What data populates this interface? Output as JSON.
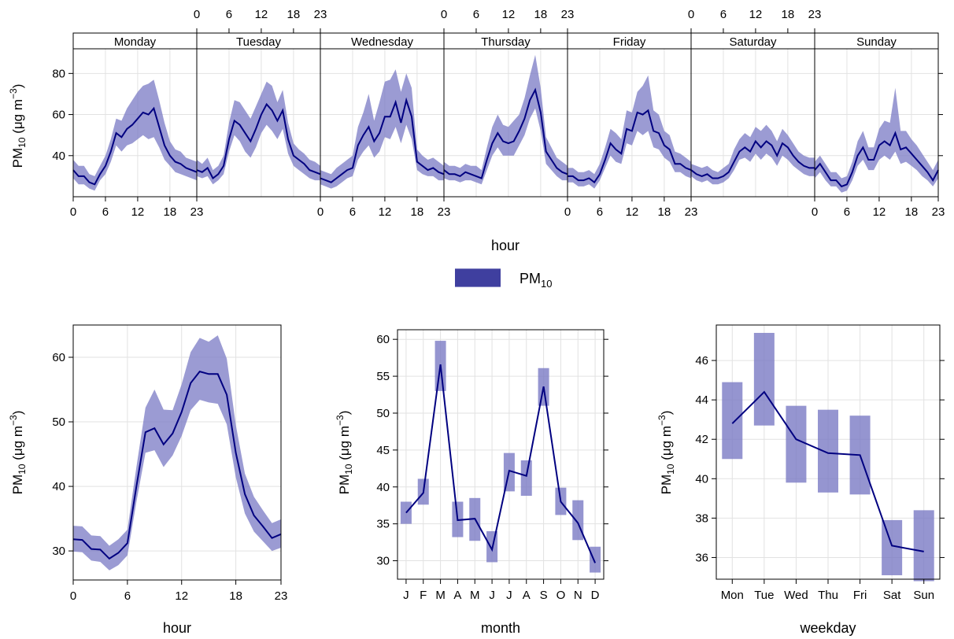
{
  "colors": {
    "line": "#000080",
    "band": "#7a7ac4",
    "grid": "#e2e2e2",
    "strip_bg": "#ffffff"
  },
  "legend": {
    "label": "PM",
    "label_sub": "10"
  },
  "ylabel": {
    "prefix": "PM",
    "sub": "10",
    "unit_open": " (μg m",
    "sup": "−3",
    "unit_close": ")"
  },
  "chart_data": [
    {
      "type": "area",
      "id": "hour_by_weekday",
      "xlabel": "hour",
      "ylim": [
        20,
        92
      ],
      "yticks": [
        40,
        60,
        80
      ],
      "xticks": [
        0,
        6,
        12,
        18,
        23
      ],
      "panels": [
        {
          "label": "Monday",
          "mean": [
            33,
            30,
            30,
            27,
            26,
            31,
            35,
            42,
            51,
            49,
            53,
            55,
            58,
            61,
            60,
            63,
            54,
            45,
            40,
            37,
            36,
            34,
            33,
            32
          ],
          "lower": [
            29,
            26,
            26,
            24,
            23,
            28,
            31,
            37,
            45,
            42,
            45,
            46,
            48,
            50,
            48,
            49,
            44,
            38,
            35,
            32,
            31,
            30,
            29,
            28
          ],
          "upper": [
            38,
            35,
            35,
            31,
            30,
            35,
            40,
            48,
            58,
            57,
            63,
            67,
            71,
            74,
            75,
            77,
            67,
            56,
            47,
            43,
            42,
            39,
            38,
            37
          ]
        },
        {
          "label": "Tuesday",
          "mean": [
            33,
            32,
            34,
            29,
            31,
            35,
            48,
            57,
            55,
            51,
            47,
            53,
            60,
            65,
            62,
            57,
            62,
            48,
            40,
            38,
            36,
            33,
            32,
            31
          ],
          "lower": [
            30,
            29,
            30,
            26,
            28,
            31,
            42,
            50,
            47,
            42,
            39,
            44,
            51,
            55,
            52,
            48,
            53,
            41,
            35,
            33,
            31,
            29,
            28,
            28
          ],
          "upper": [
            38,
            36,
            39,
            33,
            35,
            40,
            56,
            67,
            66,
            62,
            58,
            64,
            70,
            76,
            74,
            66,
            72,
            56,
            46,
            43,
            41,
            38,
            37,
            35
          ]
        },
        {
          "label": "Wednesday",
          "mean": [
            29,
            28,
            27,
            29,
            31,
            33,
            34,
            45,
            50,
            54,
            47,
            51,
            59,
            59,
            66,
            56,
            67,
            59,
            37,
            35,
            33,
            34,
            32,
            31
          ],
          "lower": [
            26,
            25,
            24,
            25,
            27,
            29,
            30,
            38,
            42,
            45,
            39,
            42,
            49,
            48,
            54,
            46,
            55,
            48,
            33,
            31,
            30,
            30,
            28,
            28
          ],
          "upper": [
            33,
            32,
            31,
            34,
            36,
            38,
            40,
            54,
            61,
            70,
            57,
            66,
            76,
            77,
            82,
            71,
            80,
            73,
            43,
            40,
            38,
            39,
            37,
            35
          ]
        },
        {
          "label": "Thursday",
          "mean": [
            33,
            31,
            31,
            30,
            32,
            31,
            30,
            29,
            38,
            46,
            51,
            47,
            46,
            47,
            52,
            58,
            67,
            72,
            61,
            42,
            38,
            34,
            32,
            31
          ],
          "lower": [
            29,
            28,
            28,
            27,
            28,
            28,
            27,
            26,
            33,
            40,
            44,
            40,
            40,
            40,
            45,
            50,
            58,
            63,
            52,
            36,
            33,
            30,
            28,
            28
          ],
          "upper": [
            37,
            35,
            35,
            34,
            36,
            35,
            35,
            33,
            44,
            54,
            60,
            55,
            54,
            57,
            60,
            68,
            79,
            89,
            73,
            49,
            44,
            39,
            37,
            35
          ]
        },
        {
          "label": "Friday",
          "mean": [
            30,
            30,
            28,
            28,
            29,
            27,
            31,
            38,
            46,
            43,
            41,
            53,
            52,
            61,
            60,
            62,
            52,
            51,
            45,
            43,
            36,
            36,
            34,
            33
          ],
          "lower": [
            27,
            27,
            25,
            25,
            26,
            24,
            28,
            34,
            40,
            37,
            36,
            46,
            45,
            52,
            50,
            52,
            44,
            43,
            39,
            37,
            32,
            32,
            30,
            29
          ],
          "upper": [
            34,
            34,
            32,
            32,
            33,
            31,
            36,
            44,
            53,
            51,
            48,
            62,
            61,
            71,
            74,
            79,
            62,
            60,
            52,
            50,
            42,
            41,
            39,
            37
          ]
        },
        {
          "label": "Saturday",
          "mean": [
            33,
            31,
            30,
            31,
            29,
            29,
            30,
            32,
            37,
            42,
            44,
            42,
            47,
            44,
            47,
            45,
            40,
            46,
            44,
            40,
            37,
            35,
            34,
            34
          ],
          "lower": [
            30,
            28,
            27,
            28,
            26,
            26,
            27,
            29,
            33,
            38,
            39,
            37,
            41,
            38,
            41,
            39,
            35,
            40,
            38,
            35,
            33,
            31,
            30,
            30
          ],
          "upper": [
            36,
            35,
            34,
            35,
            33,
            32,
            34,
            36,
            43,
            48,
            51,
            49,
            54,
            52,
            55,
            52,
            47,
            53,
            50,
            46,
            42,
            40,
            39,
            39
          ]
        },
        {
          "label": "Sunday",
          "mean": [
            33,
            36,
            32,
            28,
            28,
            25,
            26,
            32,
            40,
            44,
            38,
            38,
            45,
            47,
            45,
            51,
            43,
            44,
            41,
            38,
            35,
            32,
            28,
            33
          ],
          "lower": [
            29,
            32,
            28,
            25,
            25,
            22,
            23,
            28,
            35,
            38,
            33,
            33,
            38,
            40,
            38,
            42,
            36,
            37,
            35,
            33,
            30,
            28,
            25,
            29
          ],
          "upper": [
            37,
            40,
            36,
            32,
            32,
            29,
            30,
            37,
            47,
            52,
            44,
            44,
            53,
            57,
            56,
            73,
            52,
            52,
            48,
            45,
            41,
            37,
            33,
            38
          ]
        }
      ]
    },
    {
      "type": "area",
      "id": "hour",
      "xlabel": "hour",
      "x": [
        0,
        1,
        2,
        3,
        4,
        5,
        6,
        7,
        8,
        9,
        10,
        11,
        12,
        13,
        14,
        15,
        16,
        17,
        18,
        19,
        20,
        21,
        22,
        23
      ],
      "mean": [
        31.8,
        31.7,
        30.3,
        30.2,
        28.8,
        29.7,
        31.2,
        40.0,
        48.4,
        49.0,
        46.5,
        48.2,
        51.5,
        56.0,
        57.8,
        57.4,
        57.4,
        54.2,
        45.2,
        38.8,
        35.5,
        33.8,
        32.0,
        32.6
      ],
      "lower": [
        29.9,
        29.8,
        28.5,
        28.3,
        27.0,
        27.8,
        29.3,
        37.6,
        45.2,
        45.6,
        43.0,
        44.8,
        47.8,
        51.8,
        53.4,
        53.0,
        52.8,
        49.6,
        41.4,
        35.8,
        33.0,
        31.5,
        30.0,
        30.5
      ],
      "upper": [
        33.9,
        33.8,
        32.4,
        32.3,
        30.8,
        31.8,
        33.3,
        43.0,
        52.2,
        55.0,
        51.9,
        51.8,
        55.8,
        60.8,
        63.0,
        62.4,
        63.4,
        59.8,
        49.5,
        42.0,
        38.4,
        36.3,
        34.3,
        34.9
      ],
      "ylim": [
        25.5,
        65
      ],
      "yticks": [
        30,
        40,
        50,
        60
      ],
      "xticks": [
        0,
        6,
        12,
        18,
        23
      ]
    },
    {
      "type": "line",
      "id": "month",
      "xlabel": "month",
      "categories": [
        "J",
        "F",
        "M",
        "A",
        "M",
        "J",
        "J",
        "A",
        "S",
        "O",
        "N",
        "D"
      ],
      "mean": [
        36.5,
        39.2,
        56.6,
        35.5,
        35.7,
        31.5,
        42.2,
        41.5,
        53.6,
        38.0,
        35.1,
        29.7
      ],
      "lower": [
        35.0,
        37.6,
        53.0,
        33.2,
        32.7,
        29.8,
        39.4,
        38.8,
        51.0,
        36.2,
        32.8,
        28.4
      ],
      "upper": [
        38.0,
        41.1,
        59.8,
        38.0,
        38.5,
        34.0,
        44.6,
        43.6,
        56.1,
        39.9,
        38.2,
        31.9
      ],
      "ylim": [
        27.5,
        61.3
      ],
      "yticks": [
        30,
        35,
        40,
        45,
        50,
        55,
        60
      ]
    },
    {
      "type": "line",
      "id": "weekday",
      "xlabel": "weekday",
      "categories": [
        "Mon",
        "Tue",
        "Wed",
        "Thu",
        "Fri",
        "Sat",
        "Sun"
      ],
      "mean": [
        42.8,
        44.4,
        42.0,
        41.3,
        41.2,
        36.6,
        36.3
      ],
      "lower": [
        41.0,
        42.7,
        39.8,
        39.3,
        39.2,
        35.1,
        34.8
      ],
      "upper": [
        44.9,
        47.4,
        43.7,
        43.5,
        43.2,
        37.9,
        38.4
      ],
      "ylim": [
        34.9,
        47.8
      ],
      "yticks": [
        36,
        38,
        40,
        42,
        44,
        46
      ]
    }
  ]
}
